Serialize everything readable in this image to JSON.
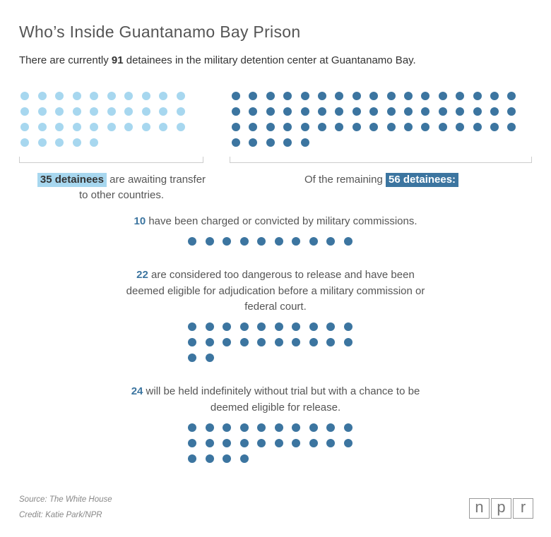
{
  "title": "Who’s Inside Guantanamo Bay Prison",
  "subtitle": {
    "pre": "There are currently ",
    "count": "91",
    "post": " detainees in the military detention center at Guantanamo Bay."
  },
  "left_caption": {
    "highlight": "35 detainees",
    "rest_line1": " are awaiting transfer",
    "line2": "to other countries."
  },
  "right_caption": {
    "pre": "Of the remaining ",
    "highlight": "56 detainees:"
  },
  "groups": [
    {
      "count": "10",
      "line1": " have been charged or convicted by military commissions."
    },
    {
      "count": "22",
      "line1": " are considered too dangerous to release and have been",
      "line2": "deemed eligible for adjudication before a military commission or",
      "line3": "federal court."
    },
    {
      "count": "24",
      "line1": " will be held indefinitely without trial but with a chance to be",
      "line2": "deemed eligible for release."
    }
  ],
  "footer": {
    "source": "Source: The White House",
    "credit": "Credit: Katie Park/NPR"
  },
  "logo": [
    "n",
    "p",
    "r"
  ],
  "colors": {
    "awaiting_transfer": "#a7d7ef",
    "remaining": "#3c75a0"
  },
  "chart_data": {
    "type": "unit dot chart",
    "total": 91,
    "series": [
      {
        "name": "awaiting transfer",
        "value": 35
      },
      {
        "name": "remaining",
        "value": 56
      }
    ],
    "breakdown_of_remaining": [
      {
        "name": "charged or convicted by military commissions",
        "value": 10
      },
      {
        "name": "eligible for adjudication",
        "value": 22
      },
      {
        "name": "held indefinitely",
        "value": 24
      }
    ]
  }
}
